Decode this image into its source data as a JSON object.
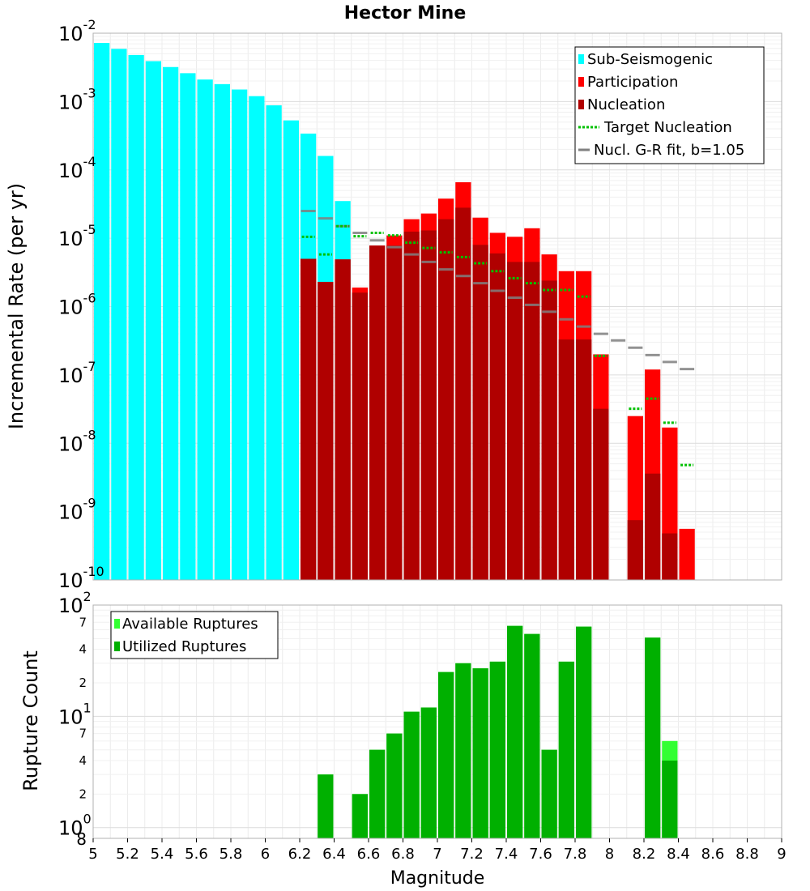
{
  "chart_data": [
    {
      "type": "bar",
      "title": "Hector Mine",
      "ylabel": "Incremental Rate (per yr)",
      "xlabel": "",
      "xlim": [
        5,
        9
      ],
      "ylim": [
        1e-10,
        0.01
      ],
      "yscale": "log",
      "bin_width": 0.1,
      "grid": true,
      "legend_position": "top-right",
      "y_ticks": [
        {
          "base": "10",
          "exp": "-2"
        },
        {
          "base": "10",
          "exp": "-3"
        },
        {
          "base": "10",
          "exp": "-4"
        },
        {
          "base": "10",
          "exp": "-5"
        },
        {
          "base": "10",
          "exp": "-6"
        },
        {
          "base": "10",
          "exp": "-7"
        },
        {
          "base": "10",
          "exp": "-8"
        },
        {
          "base": "10",
          "exp": "-9"
        },
        {
          "base": "10",
          "exp": "-10"
        }
      ],
      "legend": [
        {
          "label": "Sub-Seismogenic",
          "style": "box",
          "color": "#00ffff"
        },
        {
          "label": "Participation",
          "style": "box",
          "color": "#ff0000"
        },
        {
          "label": "Nucleation",
          "style": "box",
          "color": "#b00000"
        },
        {
          "label": "Target Nucleation",
          "style": "dotted",
          "color": "#00c000"
        },
        {
          "label": "Nucl. G-R fit, b=1.05",
          "style": "solid",
          "color": "#808080"
        }
      ],
      "series": [
        {
          "name": "Sub-Seismogenic",
          "color": "#00ffff",
          "x": [
            5.05,
            5.15,
            5.25,
            5.35,
            5.45,
            5.55,
            5.65,
            5.75,
            5.85,
            5.95,
            6.05,
            6.15,
            6.25,
            6.35,
            6.45
          ],
          "values": [
            0.0072,
            0.0059,
            0.0048,
            0.0039,
            0.0032,
            0.0026,
            0.0021,
            0.0018,
            0.0015,
            0.0012,
            0.00088,
            0.00053,
            0.00034,
            0.00016,
            3.5e-05
          ]
        },
        {
          "name": "Participation",
          "color": "#ff0000",
          "x": [
            6.25,
            6.35,
            6.45,
            6.55,
            6.65,
            6.75,
            6.85,
            6.95,
            7.05,
            7.15,
            7.25,
            7.35,
            7.45,
            7.55,
            7.65,
            7.75,
            7.85,
            7.95,
            8.15,
            8.25,
            8.35,
            8.45
          ],
          "values": [
            5e-06,
            2.3e-06,
            4.9e-06,
            1.9e-06,
            7.8e-06,
            1.1e-05,
            1.9e-05,
            2.3e-05,
            3.8e-05,
            6.6e-05,
            2e-05,
            1.2e-05,
            1.05e-05,
            1.4e-05,
            5.8e-06,
            3.3e-06,
            3.3e-06,
            2e-07,
            2.5e-08,
            1.2e-07,
            1.7e-08,
            5.6e-10
          ]
        },
        {
          "name": "Nucleation",
          "color": "#b00000",
          "x": [
            6.25,
            6.35,
            6.45,
            6.55,
            6.65,
            6.75,
            6.85,
            6.95,
            7.05,
            7.15,
            7.25,
            7.35,
            7.45,
            7.55,
            7.65,
            7.75,
            7.85,
            7.95,
            8.15,
            8.25,
            8.35
          ],
          "values": [
            5e-06,
            2.3e-06,
            4.9e-06,
            1.6e-06,
            7.8e-06,
            7.8e-06,
            1.25e-05,
            1.3e-05,
            1.9e-05,
            2.8e-05,
            8e-06,
            6e-06,
            4.5e-06,
            4.5e-06,
            2.4e-06,
            3.3e-07,
            3.3e-07,
            3.2e-08,
            7.5e-10,
            3.6e-09,
            4.8e-10
          ]
        },
        {
          "name": "Target Nucleation",
          "color": "#00c000",
          "style": "dotted",
          "x": [
            6.25,
            6.35,
            6.45,
            6.55,
            6.65,
            6.75,
            6.85,
            6.95,
            7.05,
            7.15,
            7.25,
            7.35,
            7.45,
            7.55,
            7.65,
            7.75,
            7.85,
            7.95,
            8.15,
            8.25,
            8.35,
            8.45
          ],
          "values": [
            1.05e-05,
            5.8e-06,
            1.5e-05,
            1.07e-05,
            1.2e-05,
            1.1e-05,
            8.6e-06,
            7.2e-06,
            6.2e-06,
            5.3e-06,
            4.3e-06,
            3.3e-06,
            2.6e-06,
            2.2e-06,
            1.75e-06,
            1.75e-06,
            1.4e-06,
            1.9e-07,
            3.2e-08,
            4.5e-08,
            2e-08,
            4.8e-09
          ]
        },
        {
          "name": "Nucl. G-R fit, b=1.05",
          "color": "#808080",
          "style": "solid",
          "x": [
            6.25,
            6.35,
            6.45,
            6.55,
            6.65,
            6.75,
            6.85,
            6.95,
            7.05,
            7.15,
            7.25,
            7.35,
            7.45,
            7.55,
            7.65,
            7.75,
            7.85,
            7.95,
            8.05,
            8.15,
            8.25,
            8.35,
            8.45
          ],
          "values": [
            2.5e-05,
            1.95e-05,
            1.5e-05,
            1.2e-05,
            9.3e-06,
            7.4e-06,
            5.8e-06,
            4.5e-06,
            3.5e-06,
            2.8e-06,
            2.2e-06,
            1.7e-06,
            1.35e-06,
            1.06e-06,
            8.4e-07,
            6.5e-07,
            5.1e-07,
            4e-07,
            3.2e-07,
            2.5e-07,
            1.95e-07,
            1.55e-07,
            1.22e-07
          ]
        }
      ]
    },
    {
      "type": "bar",
      "title": "",
      "ylabel": "Rupture Count",
      "xlabel": "Magnitude",
      "xlim": [
        5,
        9
      ],
      "ylim": [
        0.8,
        100
      ],
      "yscale": "log",
      "bin_width": 0.1,
      "grid": true,
      "legend_position": "top-left",
      "x_ticks": [
        "5",
        "5.2",
        "5.4",
        "5.6",
        "5.8",
        "6",
        "6.2",
        "6.4",
        "6.6",
        "6.8",
        "7",
        "7.2",
        "7.4",
        "7.6",
        "7.8",
        "8",
        "8.2",
        "8.4",
        "8.6",
        "8.8",
        "9"
      ],
      "y_major_ticks": [
        {
          "value": 100,
          "base": "10",
          "exp": "2"
        },
        {
          "value": 10,
          "base": "10",
          "exp": "1"
        },
        {
          "value": 1,
          "base": "10",
          "exp": "0"
        }
      ],
      "y_minor_ticks": [
        {
          "value": 70,
          "label": "7"
        },
        {
          "value": 40,
          "label": "4"
        },
        {
          "value": 20,
          "label": "2"
        },
        {
          "value": 7,
          "label": "7"
        },
        {
          "value": 4,
          "label": "4"
        },
        {
          "value": 2,
          "label": "2"
        },
        {
          "value": 0.8,
          "label": "8"
        }
      ],
      "legend": [
        {
          "label": "Available Ruptures",
          "color": "#33ff33"
        },
        {
          "label": "Utilized Ruptures",
          "color": "#00b000"
        }
      ],
      "series": [
        {
          "name": "Available Ruptures",
          "color": "#33ff33",
          "x": [
            6.35,
            6.55,
            6.65,
            6.75,
            6.85,
            6.95,
            7.05,
            7.15,
            7.25,
            7.35,
            7.45,
            7.55,
            7.65,
            7.75,
            7.85,
            8.25,
            8.35
          ],
          "values": [
            3,
            2,
            5,
            7,
            11,
            12,
            25,
            30,
            27,
            31,
            65,
            55,
            5,
            31,
            64,
            51,
            6
          ]
        },
        {
          "name": "Utilized Ruptures",
          "color": "#00b000",
          "x": [
            6.35,
            6.55,
            6.65,
            6.75,
            6.85,
            6.95,
            7.05,
            7.15,
            7.25,
            7.35,
            7.45,
            7.55,
            7.65,
            7.75,
            7.85,
            8.25,
            8.35
          ],
          "values": [
            3,
            2,
            5,
            7,
            11,
            12,
            25,
            30,
            27,
            31,
            65,
            55,
            5,
            31,
            64,
            51,
            4
          ]
        }
      ]
    }
  ]
}
